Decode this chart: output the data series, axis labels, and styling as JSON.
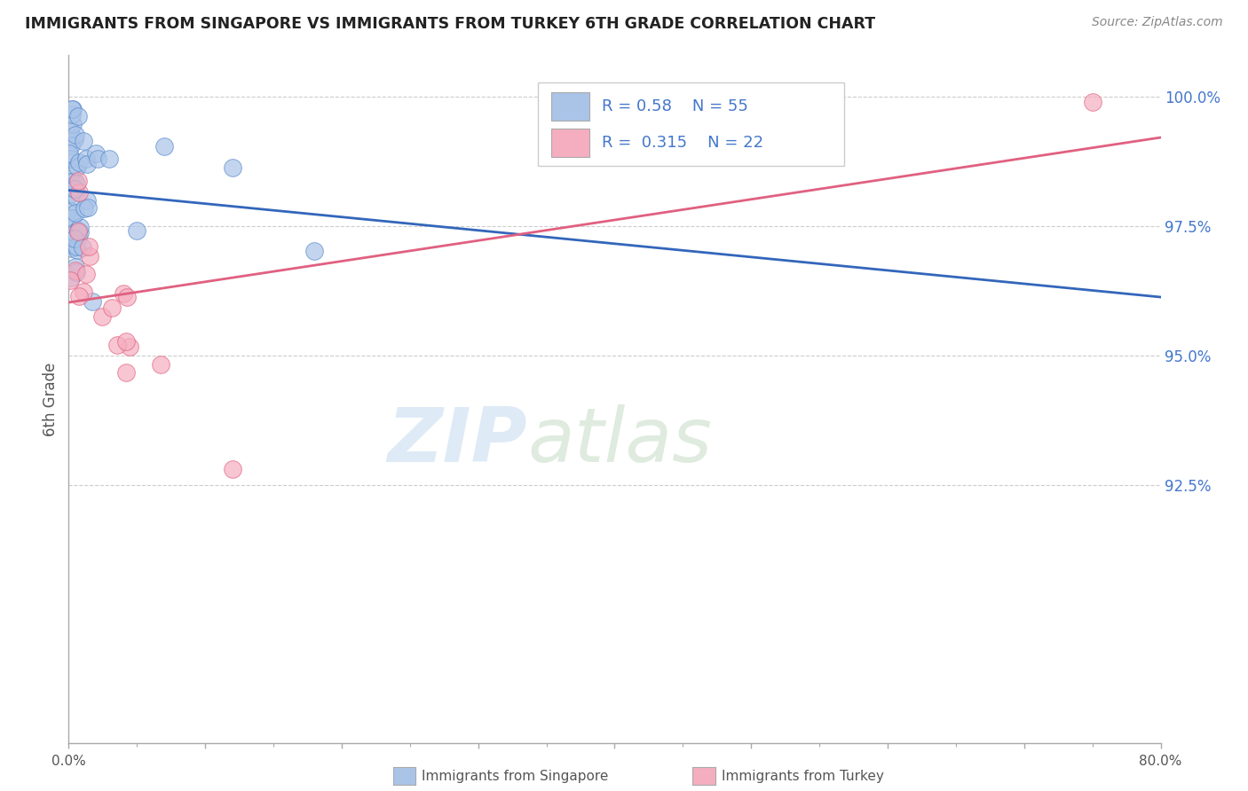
{
  "title": "IMMIGRANTS FROM SINGAPORE VS IMMIGRANTS FROM TURKEY 6TH GRADE CORRELATION CHART",
  "source": "Source: ZipAtlas.com",
  "ylabel": "6th Grade",
  "ylabel_right_ticks": [
    "100.0%",
    "97.5%",
    "95.0%",
    "92.5%"
  ],
  "ylabel_right_values": [
    1.0,
    0.975,
    0.95,
    0.925
  ],
  "ylim_min": 0.88,
  "ylim_max": 1.005,
  "xlim_min": 0.0,
  "xlim_max": 0.8,
  "R_singapore": 0.58,
  "N_singapore": 55,
  "R_turkey": 0.315,
  "N_turkey": 22,
  "color_singapore": "#aac4e8",
  "color_turkey": "#f5aec0",
  "color_singapore_edge": "#5588cc",
  "color_turkey_edge": "#e06080",
  "color_singapore_line": "#3366bb",
  "color_turkey_line": "#e06080",
  "color_legend_text": "#4477cc",
  "grid_color": "#cccccc",
  "spine_color": "#aaaaaa",
  "tick_color": "#555555",
  "right_tick_color": "#4477cc"
}
